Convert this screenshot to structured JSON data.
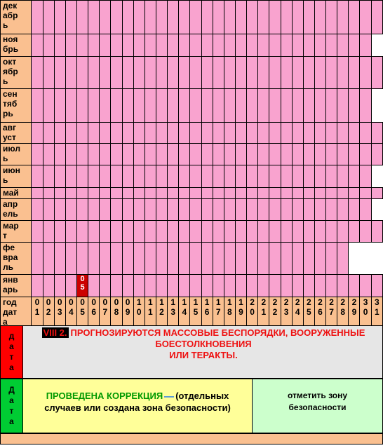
{
  "calendar": {
    "rows": [
      {
        "label": "дек\nабр\nь",
        "height": 48,
        "days": 31
      },
      {
        "label": "ноя\nбрь",
        "height": 32,
        "days": 30
      },
      {
        "label": "окт\nябр\nь",
        "height": 46,
        "days": 31
      },
      {
        "label": "сен\nтяб\nрь",
        "height": 48,
        "days": 30
      },
      {
        "label": "авг\nуст",
        "height": 30,
        "days": 31
      },
      {
        "label": "июл\nь",
        "height": 31,
        "days": 31
      },
      {
        "label": "июн\nь",
        "height": 32,
        "days": 30
      },
      {
        "label": "май",
        "height": 16,
        "days": 31
      },
      {
        "label": "апр\nель",
        "height": 31,
        "days": 30
      },
      {
        "label": "мар\nт",
        "height": 31,
        "days": 31
      },
      {
        "label": "фе\nвра\nль",
        "height": 46,
        "days": 28
      },
      {
        "label": "янв\nарь",
        "height": 32,
        "days": 31,
        "highlight": {
          "day": 5,
          "text": "0\n5"
        }
      }
    ],
    "header": {
      "label": "год\nдат\nа",
      "days": [
        "0\n1",
        "0\n2",
        "0\n3",
        "0\n4",
        "0\n5",
        "0\n6",
        "0\n7",
        "0\n8",
        "0\n9",
        "1\n0",
        "1\n1",
        "1\n2",
        "1\n3",
        "1\n4",
        "1\n5",
        "1\n6",
        "1\n7",
        "1\n8",
        "1\n9",
        "2\n0",
        "2\n1",
        "2\n2",
        "2\n3",
        "2\n4",
        "2\n5",
        "2\n6",
        "2\n7",
        "2\n8",
        "2\n9",
        "3\n0",
        "3\n1"
      ]
    }
  },
  "forecast": {
    "side_label": "д\nа\nт\nа",
    "code": "VIII 2.",
    "line1": "ПРОГНОЗИРУЮТСЯ МАССОВЫЕ БЕСПОРЯДКИ, ВООРУЖЕННЫЕ",
    "line2": "БОЕСТОЛКНОВЕНИЯ",
    "line3": "ИЛИ ТЕРАКТЫ."
  },
  "correction": {
    "side_label": "Д\nа\nт\nа",
    "title": "ПРОВЕДЕНА КОРРЕКЦИЯ",
    "text1": "(отдельных",
    "text2": "случаев или создана зона безопасности)",
    "zone1": "отметить зону",
    "zone2": "безопасности"
  },
  "colors": {
    "cell": "#f9a3cf",
    "label": "#fac090",
    "highlight": "#cc0000",
    "forecast_text": "#ee1111"
  }
}
